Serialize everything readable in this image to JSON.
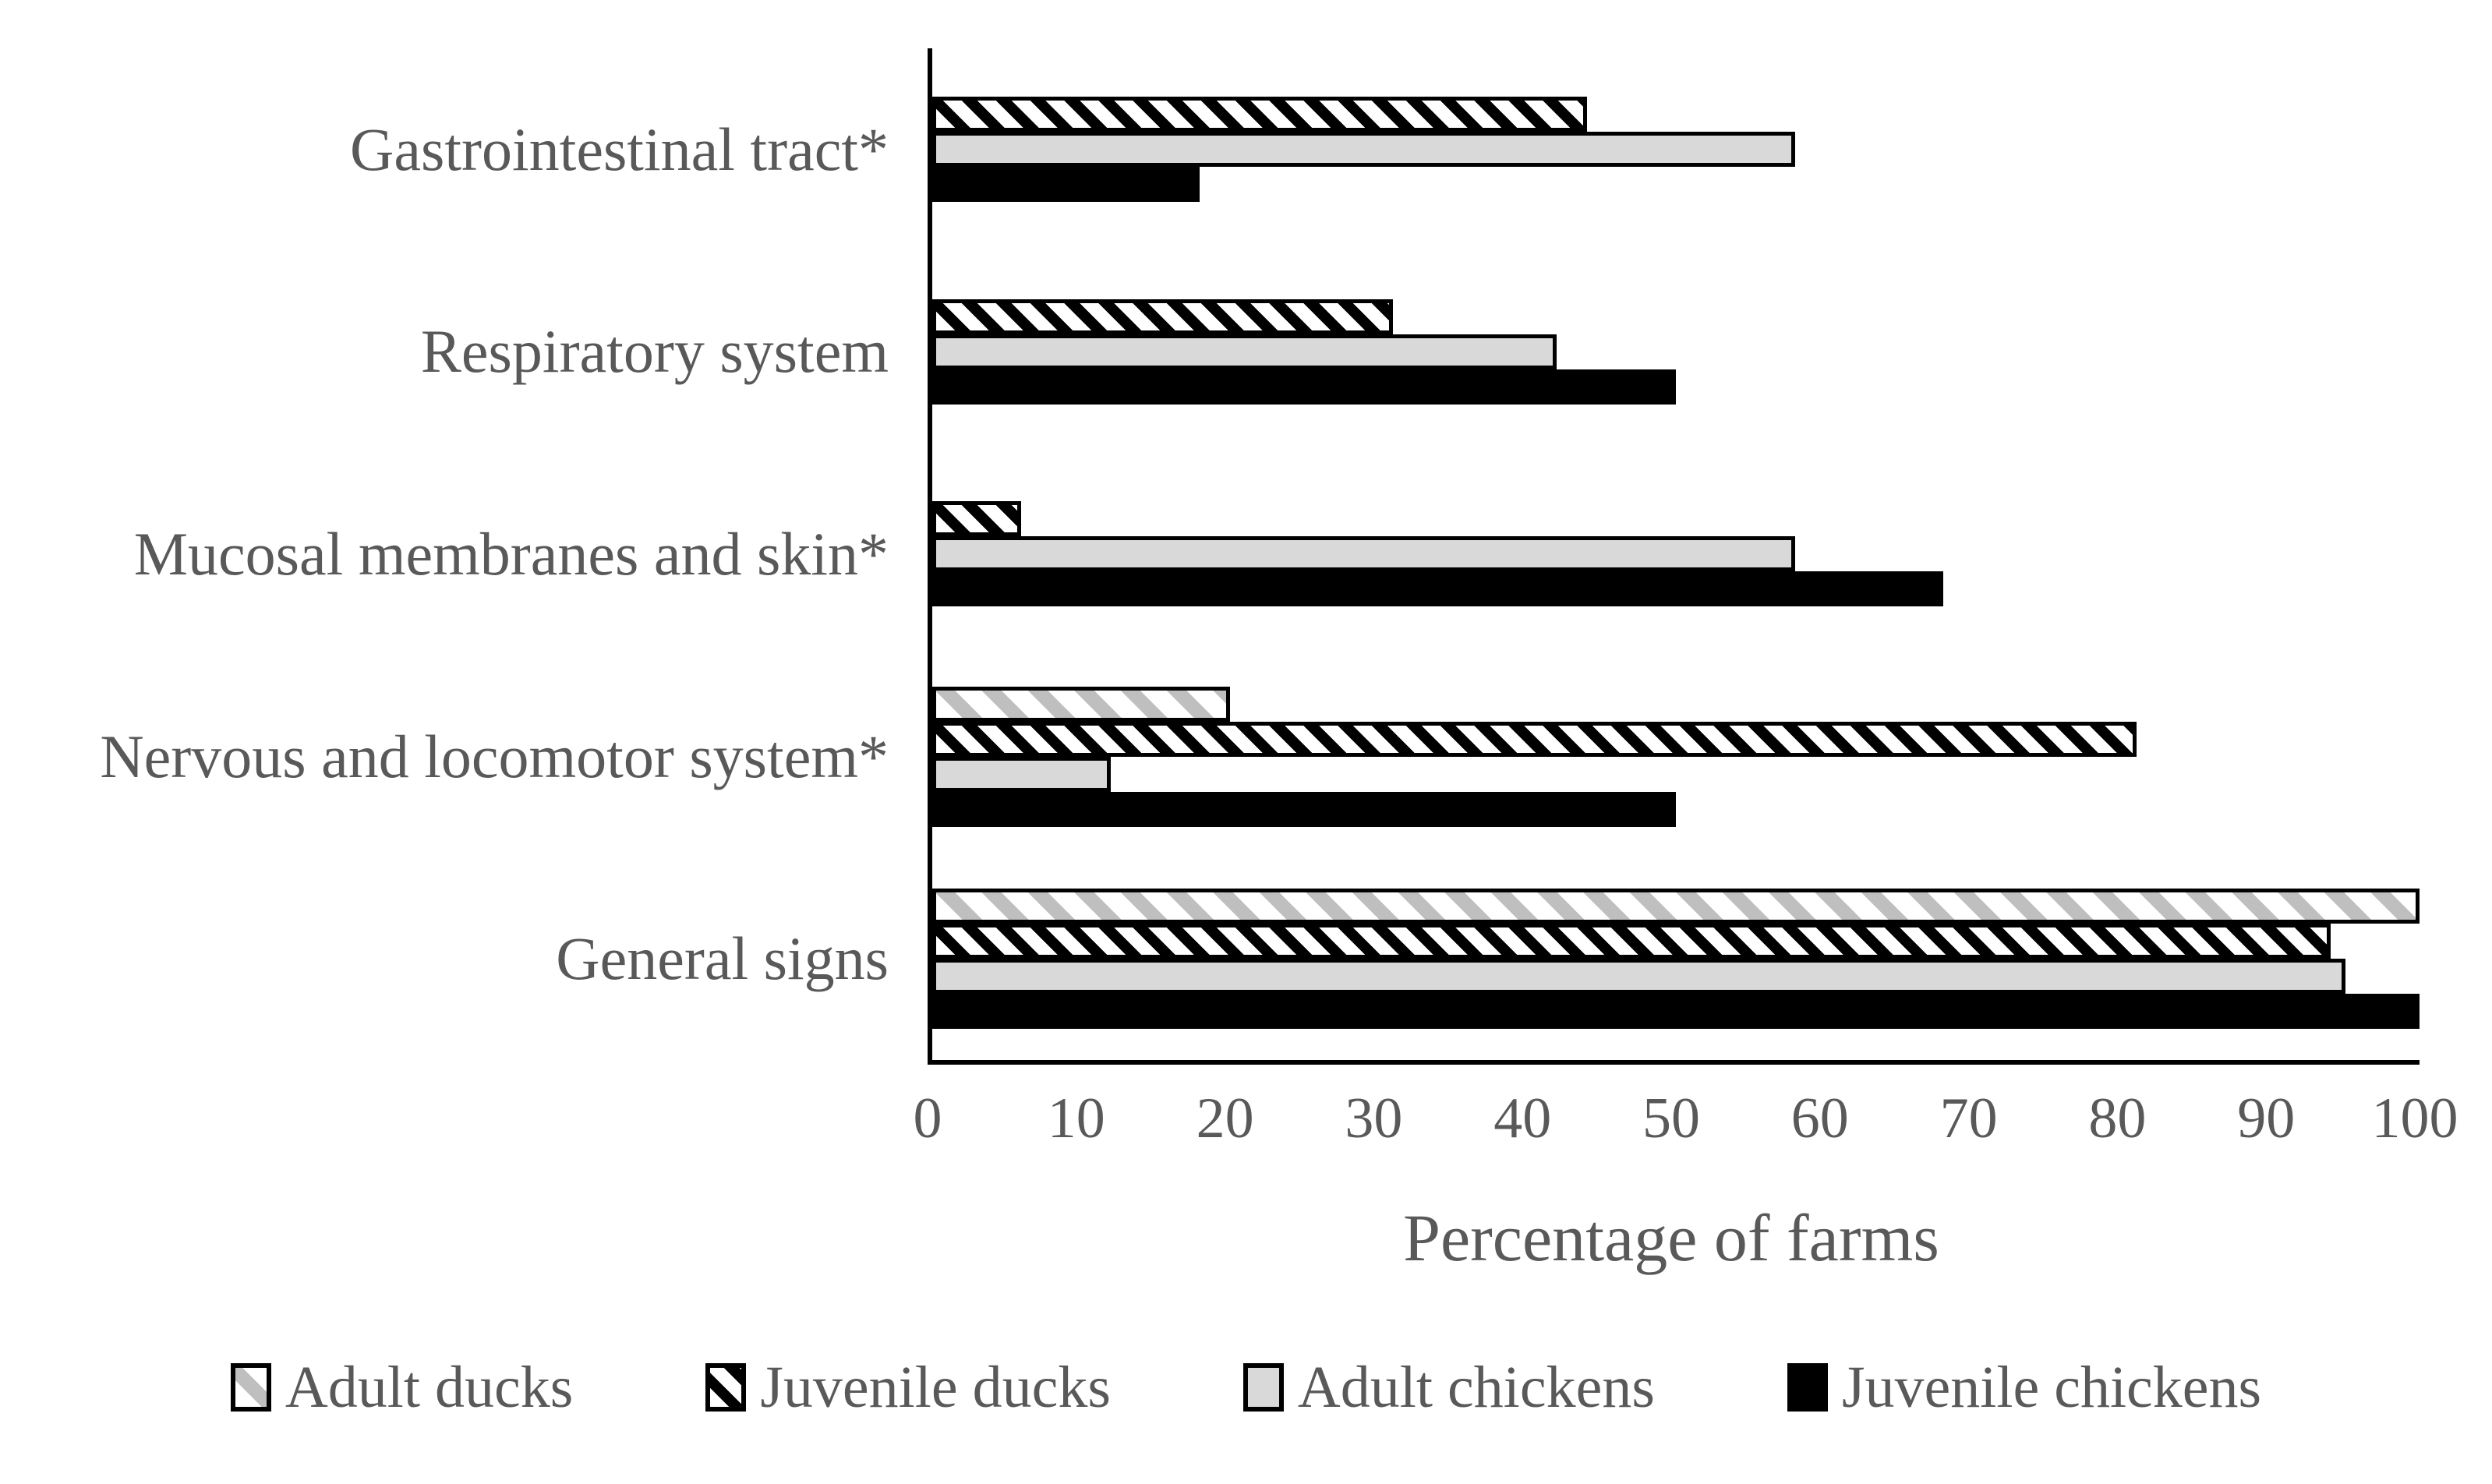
{
  "colors": {
    "text": "#595959",
    "axis": "#000000",
    "solid_gray_fill": "#d9d9d9",
    "gray_hatch_stripe": "#bfbfbf",
    "black": "#000000",
    "background": "#ffffff"
  },
  "chart_data": {
    "type": "bar",
    "orientation": "horizontal",
    "title": "",
    "xlabel": "Percentage of farms",
    "ylabel": "",
    "xlim": [
      0,
      100
    ],
    "xticks": [
      0,
      10,
      20,
      30,
      40,
      50,
      60,
      70,
      80,
      90,
      100
    ],
    "grid": false,
    "legend_position": "bottom",
    "categories_top_to_bottom": [
      "Gastrointestinal tract*",
      "Respiratory system",
      "Mucosal membranes and skin*",
      "Nervous and locomotor system*",
      "General signs"
    ],
    "series": [
      {
        "name": "Adult ducks",
        "pattern": "gray-hatch",
        "values": [
          0,
          0,
          0,
          20,
          100
        ]
      },
      {
        "name": "Juvenile ducks",
        "pattern": "black-hatch",
        "values": [
          44,
          31,
          6,
          81,
          94
        ]
      },
      {
        "name": "Adult chickens",
        "pattern": "solid-gray",
        "values": [
          58,
          42,
          58,
          12,
          95
        ]
      },
      {
        "name": "Juvenile chickens",
        "pattern": "solid-black",
        "values": [
          18,
          50,
          68,
          50,
          100
        ]
      }
    ],
    "note": "Bars with value 0 are not drawn; visible bars in each category group are stacked adjacently and vertically centered within the category band."
  }
}
